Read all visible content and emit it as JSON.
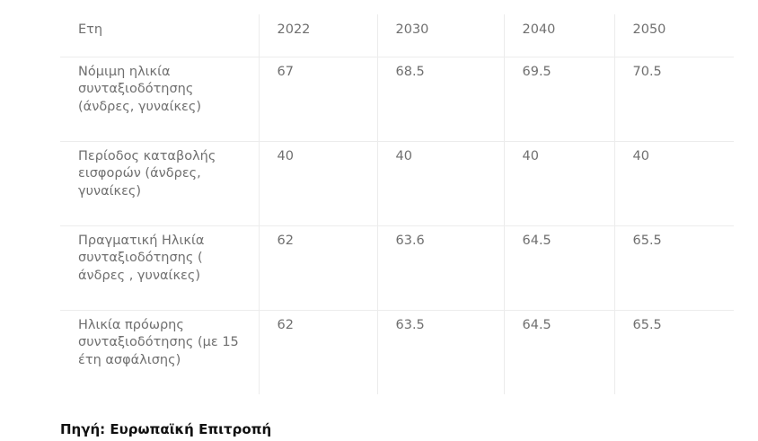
{
  "table": {
    "headers": [
      "Ετη",
      "2022",
      "2030",
      "2040",
      "2050"
    ],
    "rows": [
      [
        "Νόμιμη ηλικία συνταξιοδότησης (άνδρες, γυναίκες)",
        "67",
        "68.5",
        "69.5",
        "70.5"
      ],
      [
        "Περίοδος καταβολής εισφορών (άνδρες, γυναίκες)",
        "40",
        "40",
        "40",
        "40"
      ],
      [
        "Πραγματική Ηλικία συνταξιοδότησης ( άνδρες , γυναίκες)",
        "62",
        "63.6",
        "64.5",
        "65.5"
      ],
      [
        "Ηλικία πρόωρης συνταξιοδότησης (με 15 έτη ασφάλισης)",
        "62",
        "63.5",
        "64.5",
        "65.5"
      ]
    ]
  },
  "source": "Πηγή: Ευρωπαϊκή Επιτροπή"
}
